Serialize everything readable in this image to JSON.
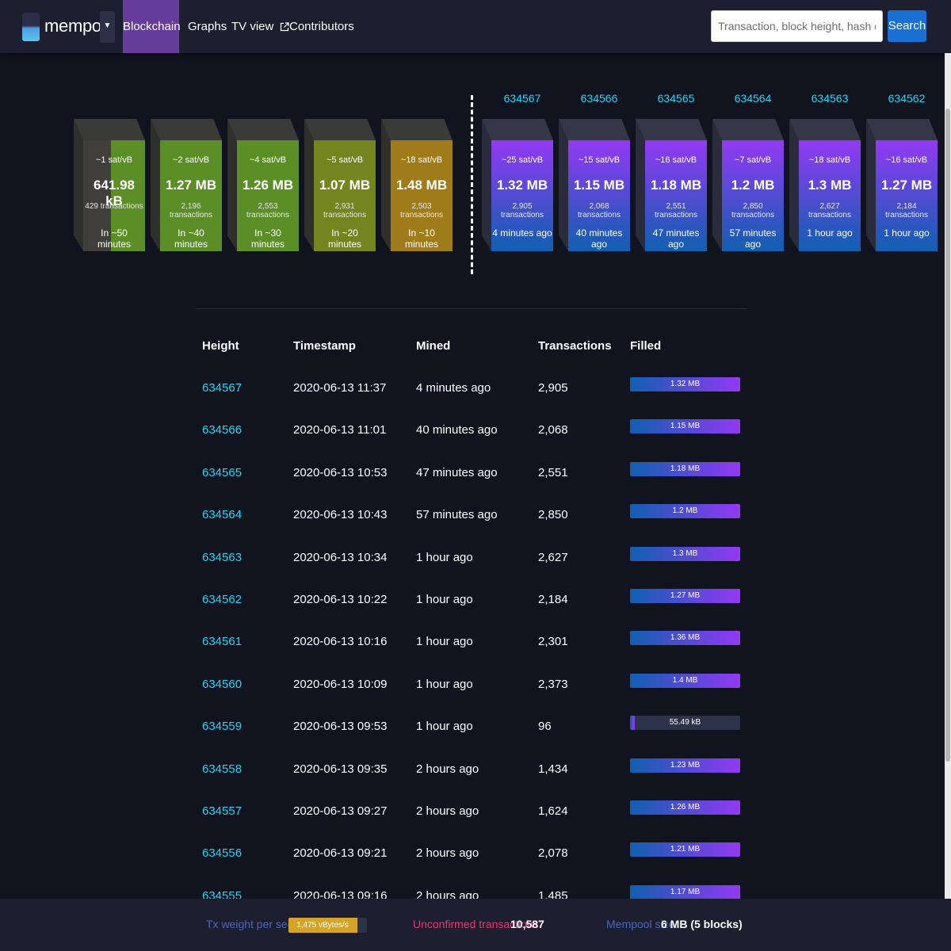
{
  "nav": {
    "brand": "mempool",
    "dropdown_icon": "caret-down",
    "items": [
      {
        "label": "Blockchain",
        "active": true
      },
      {
        "label": "Graphs"
      },
      {
        "label": "TV view",
        "icon": "external-link-icon"
      },
      {
        "label": "Contributors"
      }
    ],
    "search_placeholder": "Transaction, block height, hash or address",
    "search_button": "Search"
  },
  "mempool_blocks": [
    {
      "fee": "~1 sat/vB",
      "size": "641.98 kB",
      "txs": "429 transactions",
      "eta": "In ~50 minutes",
      "fill_pct": 55,
      "color": "#5c8e27"
    },
    {
      "fee": "~2 sat/vB",
      "size": "1.27 MB",
      "txs": "2,196 transactions",
      "eta": "In ~40 minutes",
      "fill_pct": 100,
      "color": "#5c8e27"
    },
    {
      "fee": "~4 sat/vB",
      "size": "1.26 MB",
      "txs": "2,553 transactions",
      "eta": "In ~30 minutes",
      "fill_pct": 100,
      "color": "#5c8e27"
    },
    {
      "fee": "~5 sat/vB",
      "size": "1.07 MB",
      "txs": "2,931 transactions",
      "eta": "In ~20 minutes",
      "fill_pct": 100,
      "color": "#74841f"
    },
    {
      "fee": "~18 sat/vB",
      "size": "1.48 MB",
      "txs": "2,503 transactions",
      "eta": "In ~10 minutes",
      "fill_pct": 100,
      "color": "#9f7b1a"
    }
  ],
  "mined_blocks": [
    {
      "height": "634567",
      "fee": "~25 sat/vB",
      "size": "1.32 MB",
      "txs": "2,905 transactions",
      "ago": "4 minutes ago"
    },
    {
      "height": "634566",
      "fee": "~15 sat/vB",
      "size": "1.15 MB",
      "txs": "2,068 transactions",
      "ago": "40 minutes ago"
    },
    {
      "height": "634565",
      "fee": "~16 sat/vB",
      "size": "1.18 MB",
      "txs": "2,551 transactions",
      "ago": "47 minutes ago"
    },
    {
      "height": "634564",
      "fee": "~7 sat/vB",
      "size": "1.2 MB",
      "txs": "2,850 transactions",
      "ago": "57 minutes ago"
    },
    {
      "height": "634563",
      "fee": "~18 sat/vB",
      "size": "1.3 MB",
      "txs": "2,627 transactions",
      "ago": "1 hour ago"
    },
    {
      "height": "634562",
      "fee": "~16 sat/vB",
      "size": "1.27 MB",
      "txs": "2,184 transactions",
      "ago": "1 hour ago"
    }
  ],
  "table": {
    "headers": {
      "height": "Height",
      "timestamp": "Timestamp",
      "mined": "Mined",
      "transactions": "Transactions",
      "filled": "Filled"
    },
    "rows": [
      {
        "height": "634567",
        "timestamp": "2020-06-13 11:37",
        "mined": "4 minutes ago",
        "tx": "2,905",
        "filled": "1.32 MB",
        "fill_pct": 100
      },
      {
        "height": "634566",
        "timestamp": "2020-06-13 11:01",
        "mined": "40 minutes ago",
        "tx": "2,068",
        "filled": "1.15 MB",
        "fill_pct": 100
      },
      {
        "height": "634565",
        "timestamp": "2020-06-13 10:53",
        "mined": "47 minutes ago",
        "tx": "2,551",
        "filled": "1.18 MB",
        "fill_pct": 100
      },
      {
        "height": "634564",
        "timestamp": "2020-06-13 10:43",
        "mined": "57 minutes ago",
        "tx": "2,850",
        "filled": "1.2 MB",
        "fill_pct": 100
      },
      {
        "height": "634563",
        "timestamp": "2020-06-13 10:34",
        "mined": "1 hour ago",
        "tx": "2,627",
        "filled": "1.3 MB",
        "fill_pct": 100
      },
      {
        "height": "634562",
        "timestamp": "2020-06-13 10:22",
        "mined": "1 hour ago",
        "tx": "2,184",
        "filled": "1.27 MB",
        "fill_pct": 100
      },
      {
        "height": "634561",
        "timestamp": "2020-06-13 10:16",
        "mined": "1 hour ago",
        "tx": "2,301",
        "filled": "1.36 MB",
        "fill_pct": 100
      },
      {
        "height": "634560",
        "timestamp": "2020-06-13 10:09",
        "mined": "1 hour ago",
        "tx": "2,373",
        "filled": "1.4 MB",
        "fill_pct": 100
      },
      {
        "height": "634559",
        "timestamp": "2020-06-13 09:53",
        "mined": "1 hour ago",
        "tx": "96",
        "filled": "55.49 kB",
        "fill_pct": 4
      },
      {
        "height": "634558",
        "timestamp": "2020-06-13 09:35",
        "mined": "2 hours ago",
        "tx": "1,434",
        "filled": "1.23 MB",
        "fill_pct": 100
      },
      {
        "height": "634557",
        "timestamp": "2020-06-13 09:27",
        "mined": "2 hours ago",
        "tx": "1,624",
        "filled": "1.26 MB",
        "fill_pct": 100
      },
      {
        "height": "634556",
        "timestamp": "2020-06-13 09:21",
        "mined": "2 hours ago",
        "tx": "2,078",
        "filled": "1.21 MB",
        "fill_pct": 100
      },
      {
        "height": "634555",
        "timestamp": "2020-06-13 09:16",
        "mined": "2 hours ago",
        "tx": "1,485",
        "filled": "1.17 MB",
        "fill_pct": 100
      }
    ]
  },
  "footer": {
    "tx_weight_label": "Tx weight per second:",
    "tx_weight_value": "1,475 vBytes/s",
    "tx_weight_pct": 88,
    "unconfirmed_label": "Unconfirmed transactions:",
    "unconfirmed_value": "10,587",
    "mempool_size_label": "Mempool size:",
    "mempool_size_value": "6 MB (5 blocks)"
  }
}
